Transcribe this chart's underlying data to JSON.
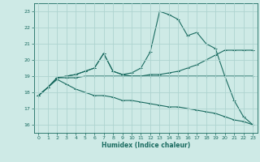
{
  "xlabel": "Humidex (Indice chaleur)",
  "ylabel": "",
  "bg_color": "#ceeae6",
  "grid_color": "#aed4d0",
  "line_color": "#1a6b60",
  "xlim": [
    -0.5,
    23.5
  ],
  "ylim": [
    15.5,
    23.5
  ],
  "xticks": [
    0,
    1,
    2,
    3,
    4,
    5,
    6,
    7,
    8,
    9,
    10,
    11,
    12,
    13,
    14,
    15,
    16,
    17,
    18,
    19,
    20,
    21,
    22,
    23
  ],
  "yticks": [
    16,
    17,
    18,
    19,
    20,
    21,
    22,
    23
  ],
  "series": [
    [
      17.8,
      18.3,
      18.9,
      18.9,
      18.9,
      19.0,
      19.0,
      19.0,
      19.0,
      19.0,
      19.0,
      19.0,
      19.0,
      19.0,
      19.0,
      19.0,
      19.0,
      19.0,
      19.0,
      19.0,
      19.0,
      19.0,
      19.0,
      19.0
    ],
    [
      17.8,
      18.3,
      18.9,
      19.0,
      19.1,
      19.3,
      19.5,
      20.4,
      19.3,
      19.1,
      19.0,
      19.0,
      19.1,
      19.1,
      19.2,
      19.3,
      19.5,
      19.7,
      20.0,
      20.3,
      20.6,
      20.6,
      20.6,
      20.6
    ],
    [
      17.8,
      18.3,
      18.9,
      19.0,
      19.1,
      19.3,
      19.5,
      20.4,
      19.3,
      19.1,
      19.2,
      19.5,
      20.5,
      23.0,
      22.8,
      22.5,
      21.5,
      21.7,
      21.0,
      20.7,
      19.0,
      17.5,
      16.5,
      16.0
    ],
    [
      17.8,
      18.3,
      18.8,
      18.5,
      18.2,
      18.0,
      17.8,
      17.8,
      17.7,
      17.5,
      17.5,
      17.4,
      17.3,
      17.2,
      17.1,
      17.1,
      17.0,
      16.9,
      16.8,
      16.7,
      16.5,
      16.3,
      16.2,
      16.0
    ]
  ]
}
